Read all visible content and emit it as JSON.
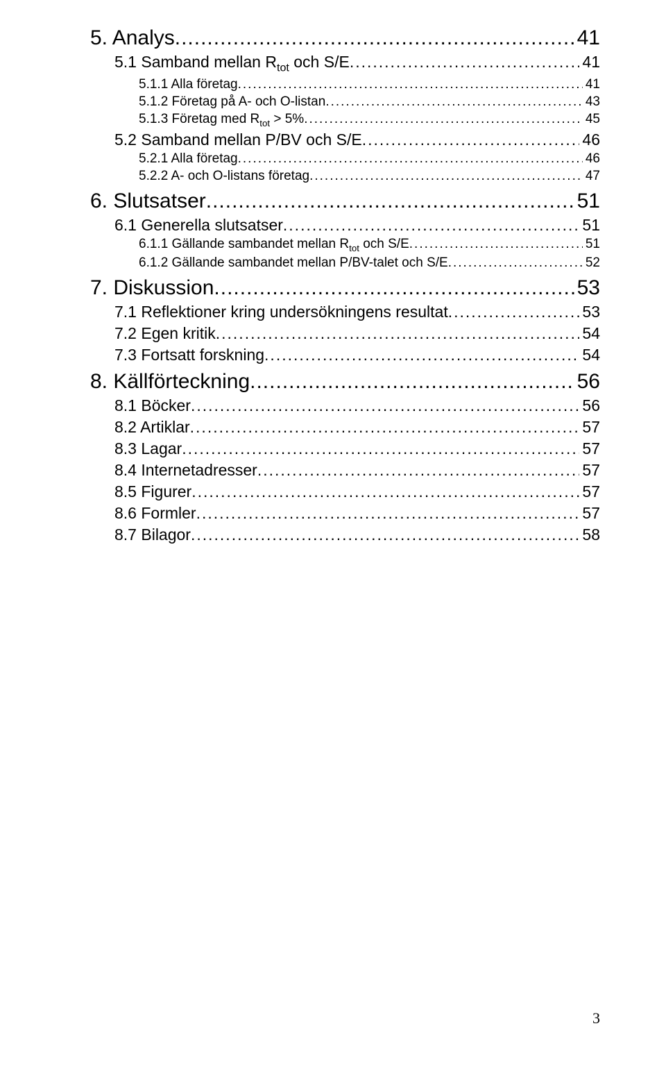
{
  "page_number": "3",
  "entries": [
    {
      "level": 1,
      "label_html": "5. Analys",
      "page": "41"
    },
    {
      "level": 2,
      "label_html": "5.1 Samband mellan R<sub>tot</sub> och S/E",
      "page": "41"
    },
    {
      "level": 3,
      "label_html": "5.1.1 Alla företag",
      "page": "41"
    },
    {
      "level": 3,
      "label_html": "5.1.2 Företag på A- och O-listan",
      "page": "43"
    },
    {
      "level": 3,
      "label_html": "5.1.3 Företag med R<sub>tot</sub> &gt; 5%",
      "page": "45"
    },
    {
      "level": 2,
      "label_html": "5.2 Samband mellan P/BV och S/E",
      "page": "46"
    },
    {
      "level": 3,
      "label_html": "5.2.1 Alla företag",
      "page": "46"
    },
    {
      "level": 3,
      "label_html": "5.2.2 A- och O-listans företag",
      "page": "47"
    },
    {
      "level": 1,
      "label_html": "6. Slutsatser",
      "page": "51"
    },
    {
      "level": 2,
      "label_html": "6.1 Generella slutsatser",
      "page": "51"
    },
    {
      "level": 3,
      "label_html": "6.1.1 Gällande sambandet mellan R<sub>tot</sub> och S/E",
      "page": "51"
    },
    {
      "level": 3,
      "label_html": "6.1.2 Gällande sambandet mellan P/BV-talet och S/E",
      "page": "52"
    },
    {
      "level": 1,
      "label_html": "7. Diskussion",
      "page": "53"
    },
    {
      "level": 2,
      "label_html": "7.1 Reflektioner kring undersökningens resultat",
      "page": "53"
    },
    {
      "level": 2,
      "label_html": "7.2 Egen kritik",
      "page": "54"
    },
    {
      "level": 2,
      "label_html": "7.3 Fortsatt forskning",
      "page": "54"
    },
    {
      "level": 1,
      "label_html": "8. Källförteckning",
      "page": "56"
    },
    {
      "level": 2,
      "label_html": "8.1 Böcker",
      "page": "56"
    },
    {
      "level": 2,
      "label_html": "8.2 Artiklar",
      "page": "57"
    },
    {
      "level": 2,
      "label_html": "8.3 Lagar",
      "page": "57"
    },
    {
      "level": 2,
      "label_html": "8.4 Internetadresser",
      "page": "57"
    },
    {
      "level": 2,
      "label_html": "8.5 Figurer",
      "page": "57"
    },
    {
      "level": 2,
      "label_html": "8.6 Formler",
      "page": "57"
    },
    {
      "level": 2,
      "label_html": "8.7 Bilagor",
      "page": "58"
    }
  ]
}
